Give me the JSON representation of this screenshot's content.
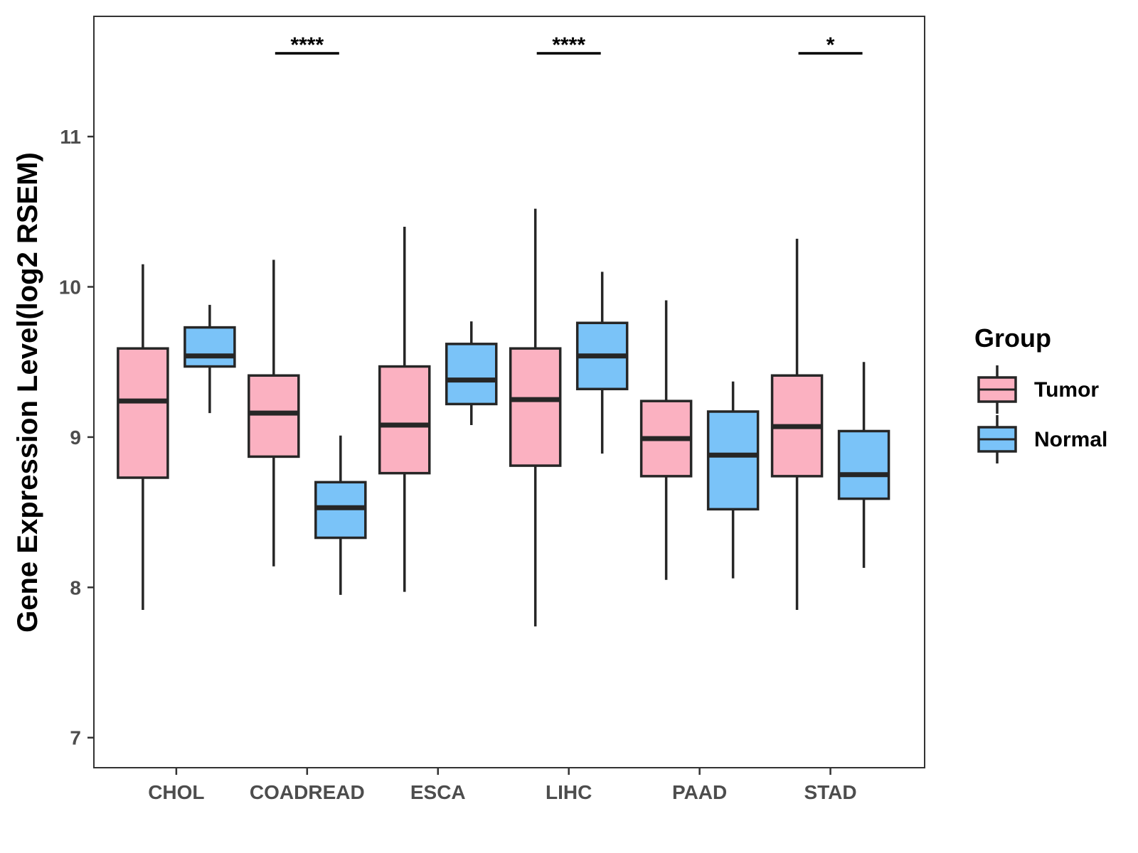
{
  "chart_data": {
    "type": "box",
    "title": "",
    "xlabel": "",
    "ylabel": "Gene Expression Level(log2 RSEM)",
    "ylim": [
      6.8,
      11.8
    ],
    "yticks": [
      7,
      8,
      9,
      10,
      11
    ],
    "grid": false,
    "categories": [
      "CHOL",
      "COADREAD",
      "ESCA",
      "LIHC",
      "PAAD",
      "STAD"
    ],
    "series": [
      {
        "name": "Tumor",
        "color": "#fbb1c1",
        "boxes": [
          {
            "min": 7.85,
            "q1": 8.73,
            "median": 9.24,
            "q3": 9.59,
            "max": 10.15
          },
          {
            "min": 8.14,
            "q1": 8.87,
            "median": 9.16,
            "q3": 9.41,
            "max": 10.18
          },
          {
            "min": 7.97,
            "q1": 8.76,
            "median": 9.08,
            "q3": 9.47,
            "max": 10.4
          },
          {
            "min": 7.74,
            "q1": 8.81,
            "median": 9.25,
            "q3": 9.59,
            "max": 10.52
          },
          {
            "min": 8.05,
            "q1": 8.74,
            "median": 8.99,
            "q3": 9.24,
            "max": 9.91
          },
          {
            "min": 7.85,
            "q1": 8.74,
            "median": 9.07,
            "q3": 9.41,
            "max": 10.32
          }
        ]
      },
      {
        "name": "Normal",
        "color": "#7ac3f8",
        "boxes": [
          {
            "min": 9.16,
            "q1": 9.47,
            "median": 9.54,
            "q3": 9.73,
            "max": 9.88
          },
          {
            "min": 7.95,
            "q1": 8.33,
            "median": 8.53,
            "q3": 8.7,
            "max": 9.01
          },
          {
            "min": 9.08,
            "q1": 9.22,
            "median": 9.38,
            "q3": 9.62,
            "max": 9.77
          },
          {
            "min": 8.89,
            "q1": 9.32,
            "median": 9.54,
            "q3": 9.76,
            "max": 10.1
          },
          {
            "min": 8.06,
            "q1": 8.52,
            "median": 8.88,
            "q3": 9.17,
            "max": 9.37
          },
          {
            "min": 8.13,
            "q1": 8.59,
            "median": 8.75,
            "q3": 9.04,
            "max": 9.5
          }
        ]
      }
    ],
    "significance": [
      "",
      "****",
      "",
      "****",
      "",
      "*"
    ],
    "legend": {
      "title": "Group",
      "position": "right",
      "items": [
        "Tumor",
        "Normal"
      ]
    }
  }
}
